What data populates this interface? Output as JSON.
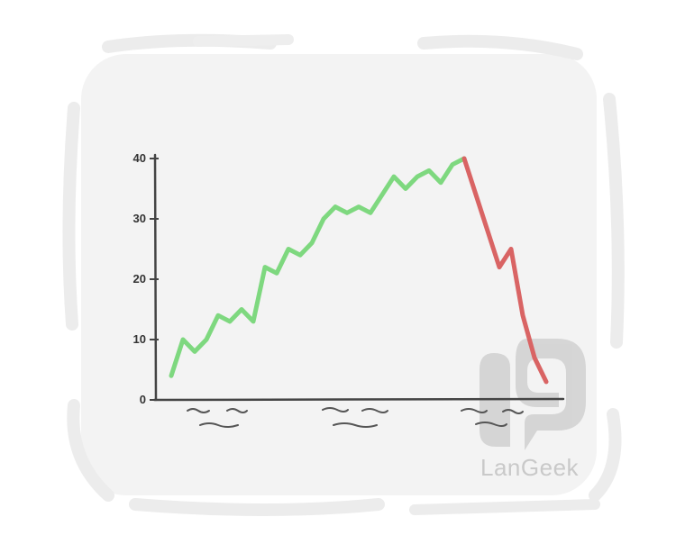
{
  "chart_data": {
    "type": "line",
    "title": "",
    "xlabel": "",
    "ylabel": "",
    "ylim": [
      0,
      40
    ],
    "yticks": [
      "0",
      "10",
      "20",
      "30",
      "40"
    ],
    "grid": false,
    "x": [
      0,
      1,
      2,
      3,
      4,
      5,
      6,
      7,
      8,
      9,
      10,
      11,
      12,
      13,
      14,
      15,
      16,
      17,
      18,
      19,
      20,
      21,
      22,
      23,
      24,
      25,
      26,
      27,
      28,
      29,
      30,
      31,
      32
    ],
    "series": [
      {
        "color": "#7ed87f",
        "x": [
          0,
          1,
          2,
          3,
          4,
          5,
          6,
          7,
          8,
          9,
          10,
          11,
          12,
          13,
          14,
          15,
          16,
          17,
          18,
          19,
          20,
          21,
          22,
          23,
          24,
          25
        ],
        "values": [
          4,
          10,
          8,
          10,
          14,
          13,
          15,
          13,
          22,
          21,
          25,
          24,
          26,
          30,
          32,
          31,
          32,
          31,
          34,
          37,
          35,
          37,
          38,
          36,
          39,
          40
        ]
      },
      {
        "color": "#d96464",
        "x": [
          25,
          26,
          27,
          28,
          29,
          30,
          31,
          32
        ],
        "values": [
          40,
          34,
          28,
          22,
          25,
          14,
          7,
          3
        ]
      }
    ]
  },
  "watermark": {
    "brand": "LanGeek",
    "logo": "langeek-logo"
  }
}
